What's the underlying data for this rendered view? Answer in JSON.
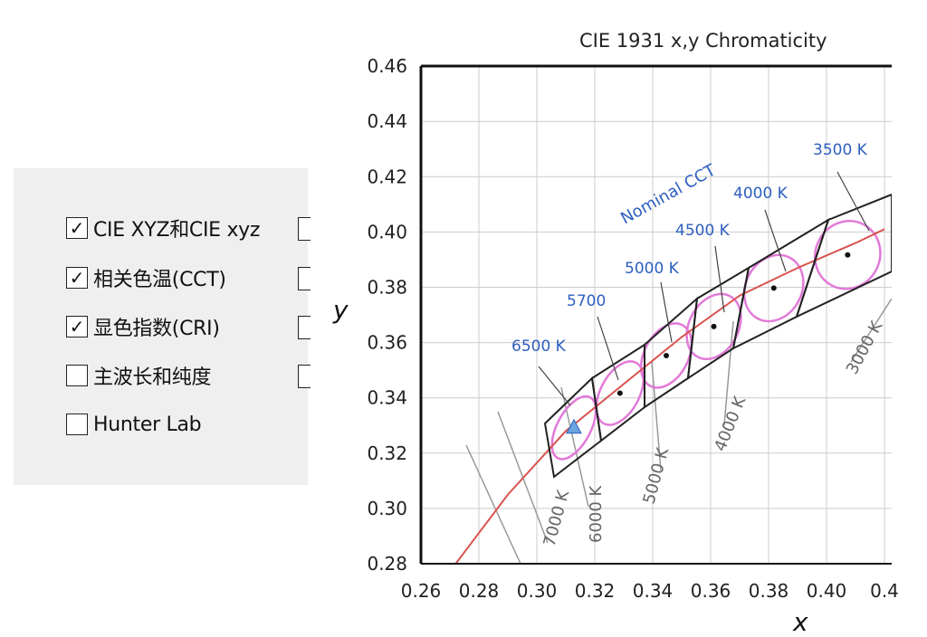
{
  "options_panel": {
    "items": [
      {
        "label": "CIE XYZ和CIE xyz",
        "checked": true
      },
      {
        "label": "相关色温(CCT)",
        "checked": true
      },
      {
        "label": "显色指数(CRI)",
        "checked": true
      },
      {
        "label": "主波长和纯度",
        "checked": false
      },
      {
        "label": "Hunter Lab",
        "checked": false
      }
    ],
    "check_glyph": "✓"
  },
  "chart_data": {
    "type": "scatter",
    "title": "CIE 1931  x,y Chromaticity",
    "xlabel": "x",
    "ylabel": "y",
    "xlim": [
      0.26,
      0.42
    ],
    "ylim": [
      0.28,
      0.46
    ],
    "x_ticks": [
      "0.26",
      "0.28",
      "0.30",
      "0.32",
      "0.34",
      "0.36",
      "0.38",
      "0.40",
      "0.4"
    ],
    "y_ticks": [
      "0.28",
      "0.30",
      "0.32",
      "0.34",
      "0.36",
      "0.38",
      "0.40",
      "0.42",
      "0.44",
      "0.46"
    ],
    "grid": true,
    "planckian_locus": [
      [
        0.272,
        0.28
      ],
      [
        0.29,
        0.305
      ],
      [
        0.31,
        0.328
      ],
      [
        0.33,
        0.345
      ],
      [
        0.35,
        0.362
      ],
      [
        0.37,
        0.377
      ],
      [
        0.39,
        0.387
      ],
      [
        0.41,
        0.396
      ],
      [
        0.42,
        0.401
      ]
    ],
    "nominal_cct_points": [
      {
        "label": "6500 K",
        "x": 0.3128,
        "y": 0.3292
      },
      {
        "label": "5700",
        "x": 0.3287,
        "y": 0.3417
      },
      {
        "label": "5000 K",
        "x": 0.3447,
        "y": 0.3553
      },
      {
        "label": "4500 K",
        "x": 0.3611,
        "y": 0.3658
      },
      {
        "label": "4000 K",
        "x": 0.3818,
        "y": 0.3797
      },
      {
        "label": "3500 K",
        "x": 0.4073,
        "y": 0.3917
      }
    ],
    "isotemperature_labels": [
      "7000 K",
      "6000 K",
      "5000 K",
      "4000 K",
      "3000 K"
    ],
    "annotation": "Nominal CCT",
    "colors": {
      "locus": "#d9534f",
      "ellipse": "#e27ad8",
      "quad": "#222222",
      "label_blue": "#2e5fbf",
      "grid": "#cccccc",
      "iso": "#999999"
    }
  }
}
